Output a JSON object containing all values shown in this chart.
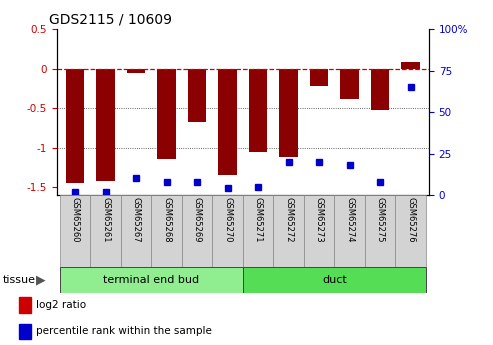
{
  "title": "GDS2115 / 10609",
  "samples": [
    "GSM65260",
    "GSM65261",
    "GSM65267",
    "GSM65268",
    "GSM65269",
    "GSM65270",
    "GSM65271",
    "GSM65272",
    "GSM65273",
    "GSM65274",
    "GSM65275",
    "GSM65276"
  ],
  "log2_ratio": [
    -1.45,
    -1.42,
    -0.05,
    -1.15,
    -0.68,
    -1.35,
    -1.05,
    -1.12,
    -0.22,
    -0.38,
    -0.52,
    0.08
  ],
  "percentile": [
    2,
    2,
    10,
    8,
    8,
    4,
    5,
    20,
    20,
    18,
    8,
    65
  ],
  "ylim_left": [
    -1.6,
    0.5
  ],
  "ylim_right": [
    0,
    100
  ],
  "bar_color": "#8B0000",
  "dot_color": "#0000CD",
  "zeroline_color": "#CC0000",
  "gridline_color": "#333333",
  "left_yticks": [
    0.5,
    0,
    -0.5,
    -1.0,
    -1.5
  ],
  "left_ytick_labels": [
    "0.5",
    "0",
    "-0.5",
    "-1",
    "-1.5"
  ],
  "right_yticks": [
    0,
    25,
    50,
    75,
    100
  ],
  "right_ytick_labels": [
    "0",
    "25",
    "50",
    "75",
    "100%"
  ],
  "tick_color_left": "#CC0000",
  "tick_color_right": "#0000CD",
  "sample_bg_color": "#d3d3d3",
  "tissue_groups": [
    {
      "label": "terminal end bud",
      "start": 0,
      "end": 6,
      "color": "#90EE90"
    },
    {
      "label": "duct",
      "start": 6,
      "end": 12,
      "color": "#55DD55"
    }
  ],
  "tissue_label": "tissue",
  "legend": [
    {
      "label": "log2 ratio",
      "color": "#CC0000"
    },
    {
      "label": "percentile rank within the sample",
      "color": "#0000CD"
    }
  ],
  "bg_color": "#ffffff",
  "spine_color": "#000000"
}
